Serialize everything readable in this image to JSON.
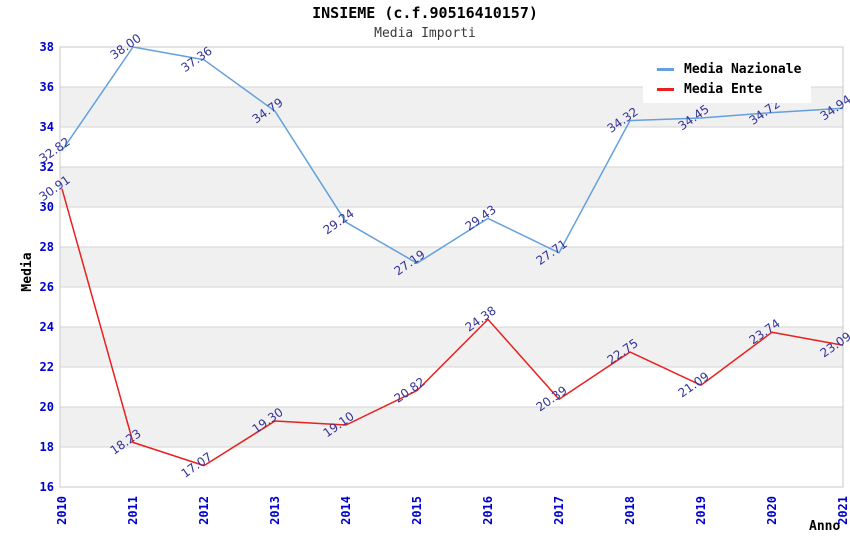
{
  "header": {
    "title": "INSIEME (c.f.90516410157)",
    "subtitle": "Media Importi"
  },
  "legend": {
    "position": "top-right",
    "items": [
      {
        "label": "Media Nazionale",
        "color": "#63a0dc"
      },
      {
        "label": "Media Ente",
        "color": "#e82020"
      }
    ]
  },
  "colors": {
    "tick_labels": "#0000cc",
    "data_labels": "#333399",
    "band_fill": "#f0f0f0",
    "gridline": "#d4d4d4",
    "plot_border": "#c8c8c8",
    "series_nazionale": "#63a0dc",
    "series_ente": "#e82020"
  },
  "chart_data": {
    "type": "line",
    "title": "INSIEME (c.f.90516410157)",
    "subtitle": "Media Importi",
    "xlabel": "Anno",
    "ylabel": "Media",
    "categories": [
      "2010",
      "2011",
      "2012",
      "2013",
      "2014",
      "2015",
      "2016",
      "2017",
      "2018",
      "2019",
      "2020",
      "2021"
    ],
    "series": [
      {
        "name": "Media Nazionale",
        "color": "#63a0dc",
        "values": [
          32.82,
          38.0,
          37.36,
          34.79,
          29.24,
          27.19,
          29.43,
          27.71,
          34.32,
          34.45,
          34.72,
          34.94
        ]
      },
      {
        "name": "Media Ente",
        "color": "#e82020",
        "values": [
          30.91,
          18.23,
          17.07,
          19.3,
          19.1,
          20.82,
          24.38,
          20.39,
          22.75,
          21.09,
          23.74,
          23.09
        ]
      }
    ],
    "ylim": [
      16,
      38
    ],
    "ytick_step": 2,
    "grid": true,
    "band_fill": "alternating-gray",
    "legend_position": "top-right",
    "data_labels_shown": true,
    "note_labels_partially_hidden_by_legend": [
      "2019",
      "2020"
    ]
  }
}
